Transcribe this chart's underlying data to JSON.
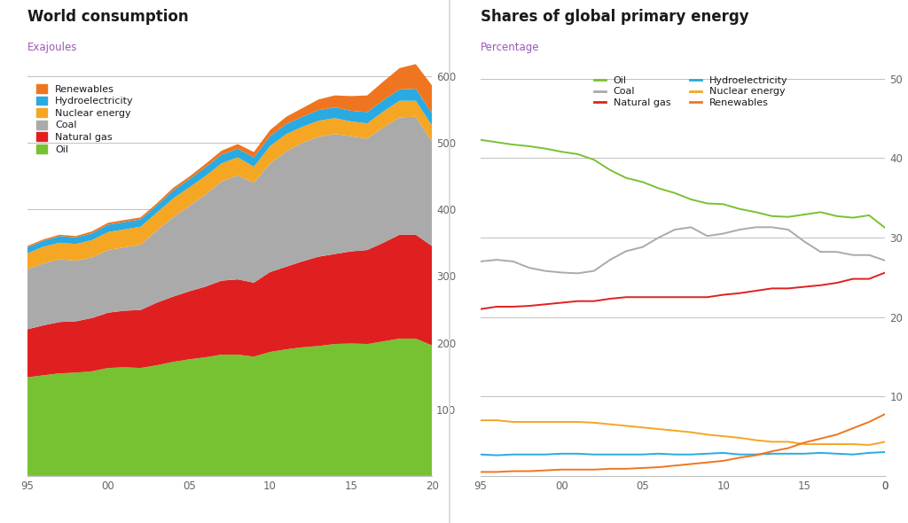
{
  "years": [
    1995,
    1996,
    1997,
    1998,
    1999,
    2000,
    2001,
    2002,
    2003,
    2004,
    2005,
    2006,
    2007,
    2008,
    2009,
    2010,
    2011,
    2012,
    2013,
    2014,
    2015,
    2016,
    2017,
    2018,
    2019,
    2020
  ],
  "stack": {
    "Oil": [
      148,
      151,
      154,
      155,
      157,
      162,
      163,
      162,
      166,
      171,
      175,
      178,
      182,
      182,
      179,
      186,
      190,
      193,
      195,
      198,
      199,
      198,
      202,
      206,
      206,
      196
    ],
    "Natural gas": [
      72,
      75,
      77,
      77,
      80,
      83,
      85,
      87,
      94,
      98,
      102,
      106,
      111,
      113,
      111,
      120,
      124,
      129,
      134,
      135,
      138,
      141,
      148,
      156,
      156,
      149
    ],
    "Coal": [
      90,
      93,
      94,
      91,
      91,
      94,
      95,
      98,
      108,
      119,
      128,
      138,
      149,
      156,
      150,
      163,
      173,
      178,
      180,
      180,
      173,
      167,
      173,
      176,
      177,
      157
    ],
    "Nuclear energy": [
      24,
      25,
      25,
      25,
      26,
      27,
      27,
      27,
      27,
      28,
      28,
      28,
      27,
      27,
      24,
      26,
      26,
      24,
      24,
      24,
      22,
      23,
      24,
      25,
      24,
      24
    ],
    "Hydroelectricity": [
      9,
      9,
      10,
      10,
      10,
      11,
      11,
      11,
      11,
      12,
      12,
      13,
      13,
      13,
      14,
      15,
      15,
      15,
      16,
      16,
      16,
      17,
      17,
      17,
      18,
      18
    ],
    "Renewables": [
      2,
      2,
      2,
      2,
      3,
      3,
      3,
      3,
      3,
      4,
      4,
      5,
      6,
      7,
      8,
      9,
      11,
      13,
      16,
      18,
      22,
      25,
      28,
      32,
      37,
      42
    ]
  },
  "stack_colors": {
    "Oil": "#77c232",
    "Natural gas": "#e02020",
    "Coal": "#aaaaaa",
    "Nuclear energy": "#f5a623",
    "Hydroelectricity": "#29aae1",
    "Renewables": "#f07520"
  },
  "shares": {
    "Oil": [
      42.3,
      42.0,
      41.7,
      41.5,
      41.2,
      40.8,
      40.5,
      39.8,
      38.5,
      37.5,
      37.0,
      36.2,
      35.6,
      34.8,
      34.3,
      34.2,
      33.6,
      33.2,
      32.7,
      32.6,
      32.9,
      33.2,
      32.7,
      32.5,
      32.8,
      31.2
    ],
    "Coal": [
      27.0,
      27.2,
      27.0,
      26.2,
      25.8,
      25.6,
      25.5,
      25.8,
      27.2,
      28.3,
      28.8,
      30.0,
      31.0,
      31.3,
      30.2,
      30.5,
      31.0,
      31.3,
      31.3,
      31.0,
      29.5,
      28.2,
      28.2,
      27.8,
      27.8,
      27.1
    ],
    "Natural gas": [
      21.0,
      21.3,
      21.3,
      21.4,
      21.6,
      21.8,
      22.0,
      22.0,
      22.3,
      22.5,
      22.5,
      22.5,
      22.5,
      22.5,
      22.5,
      22.8,
      23.0,
      23.3,
      23.6,
      23.6,
      23.8,
      24.0,
      24.3,
      24.8,
      24.8,
      25.6
    ],
    "Hydroelectricity": [
      2.7,
      2.6,
      2.7,
      2.7,
      2.7,
      2.8,
      2.8,
      2.7,
      2.7,
      2.7,
      2.7,
      2.8,
      2.7,
      2.7,
      2.8,
      2.9,
      2.7,
      2.7,
      2.8,
      2.8,
      2.8,
      2.9,
      2.8,
      2.7,
      2.9,
      3.0
    ],
    "Nuclear energy": [
      7.0,
      7.0,
      6.8,
      6.8,
      6.8,
      6.8,
      6.8,
      6.7,
      6.5,
      6.3,
      6.1,
      5.9,
      5.7,
      5.5,
      5.2,
      5.0,
      4.8,
      4.5,
      4.3,
      4.3,
      4.0,
      4.0,
      4.0,
      4.0,
      3.9,
      4.3
    ],
    "Renewables": [
      0.5,
      0.5,
      0.6,
      0.6,
      0.7,
      0.8,
      0.8,
      0.8,
      0.9,
      0.9,
      1.0,
      1.1,
      1.3,
      1.5,
      1.7,
      1.9,
      2.3,
      2.6,
      3.1,
      3.5,
      4.2,
      4.7,
      5.2,
      6.0,
      6.8,
      7.8
    ]
  },
  "shares_colors": {
    "Oil": "#77c232",
    "Coal": "#aaaaaa",
    "Natural gas": "#e02020",
    "Hydroelectricity": "#29aae1",
    "Nuclear energy": "#f5a623",
    "Renewables": "#f07520"
  },
  "title_left": "World consumption",
  "subtitle_left": "Exajoules",
  "title_right": "Shares of global primary energy",
  "subtitle_right": "Percentage",
  "title_color": "#1a1a1a",
  "subtitle_color": "#9b59b6",
  "tick_label_color": "#666666",
  "grid_color": "#c0c0c0",
  "background_color": "#ffffff",
  "ylim_left": [
    0,
    620
  ],
  "ylim_right": [
    0,
    52
  ],
  "yticks_left": [
    100,
    200,
    300,
    400,
    500,
    600
  ],
  "yticks_right": [
    10,
    20,
    30,
    40,
    50
  ],
  "xticks": [
    1995,
    2000,
    2005,
    2010,
    2015,
    2020
  ],
  "xticklabels_left": [
    "95",
    "00",
    "05",
    "10",
    "15",
    "20"
  ],
  "xticklabels_right": [
    "95",
    "00",
    "05",
    "10",
    "15",
    "20"
  ]
}
